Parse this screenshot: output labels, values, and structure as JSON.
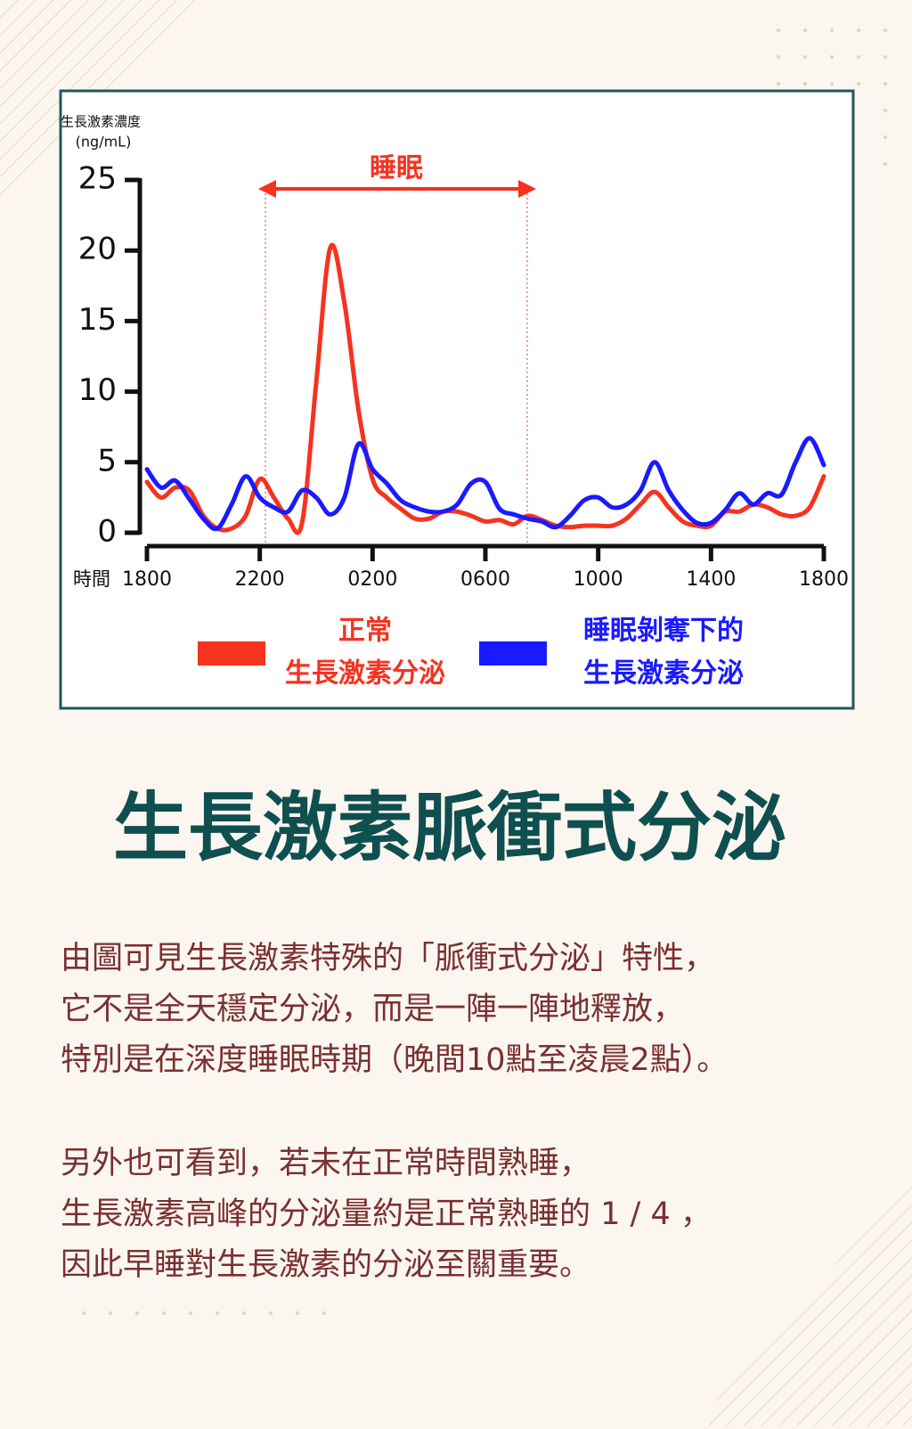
{
  "chart_data": {
    "type": "line",
    "y_label": [
      "生長激素濃度",
      "(ng/mL)"
    ],
    "x_label": "時間",
    "annotation": "睡眠",
    "categories": [
      "1800",
      null,
      null,
      null,
      null,
      null,
      null,
      null,
      "2200",
      null,
      null,
      null,
      null,
      null,
      null,
      null,
      "0200",
      null,
      null,
      null,
      null,
      null,
      null,
      null,
      "0600",
      null,
      null,
      null,
      null,
      null,
      null,
      null,
      "1000",
      null,
      null,
      null,
      null,
      null,
      null,
      null,
      "1400",
      null,
      null,
      null,
      null,
      null,
      null,
      null,
      "1800"
    ],
    "series": [
      {
        "name": [
          "正常",
          "生長激素分泌"
        ],
        "color": "#f5331f",
        "values": [
          3.6,
          2.5,
          3.2,
          3.0,
          1.2,
          0.3,
          0.3,
          1.2,
          3.8,
          2.5,
          1.0,
          0.7,
          10.6,
          20.2,
          16.3,
          8.7,
          3.8,
          2.5,
          1.7,
          1.0,
          1.0,
          1.5,
          1.5,
          1.2,
          0.8,
          0.9,
          0.6,
          1.2,
          0.9,
          0.5,
          0.4,
          0.5,
          0.5,
          0.5,
          1.0,
          2.0,
          2.9,
          1.8,
          0.8,
          0.5,
          0.5,
          1.5,
          1.5,
          2.0,
          1.8,
          1.3,
          1.2,
          1.8,
          4.0
        ]
      },
      {
        "name": [
          "睡眠剝奪下的",
          "生長激素分泌"
        ],
        "color": "#1a1aff",
        "values": [
          4.5,
          3.2,
          3.7,
          2.4,
          1.0,
          0.3,
          2.0,
          4.0,
          2.5,
          1.8,
          1.5,
          3.0,
          2.5,
          1.3,
          2.5,
          6.3,
          4.5,
          3.5,
          2.3,
          1.8,
          1.5,
          1.5,
          2.0,
          3.5,
          3.6,
          1.7,
          1.3,
          1.0,
          0.8,
          0.4,
          1.2,
          2.3,
          2.5,
          1.8,
          2.0,
          3.0,
          5.0,
          3.0,
          1.6,
          0.7,
          0.7,
          1.6,
          2.8,
          2.0,
          2.8,
          2.7,
          5.0,
          6.7,
          4.8
        ]
      }
    ],
    "ylim": [
      0,
      25
    ],
    "yticks": [
      0,
      5,
      10,
      15,
      20,
      25
    ]
  },
  "heading": "生長激素脈衝式分泌",
  "paragraphs": [
    [
      "由圖可見生長激素特殊的「脈衝式分泌」特性，",
      "它不是全天穩定分泌，而是一陣一陣地釋放，",
      "特別是在深度睡眠時期（晚間10點至凌晨2點）。"
    ],
    [
      "另外也可看到，若未在正常時間熟睡，",
      "生長激素高峰的分泌量約是正常熟睡的 1 / 4 ，",
      "因此早睡對生長激素的分泌至關重要。"
    ]
  ]
}
